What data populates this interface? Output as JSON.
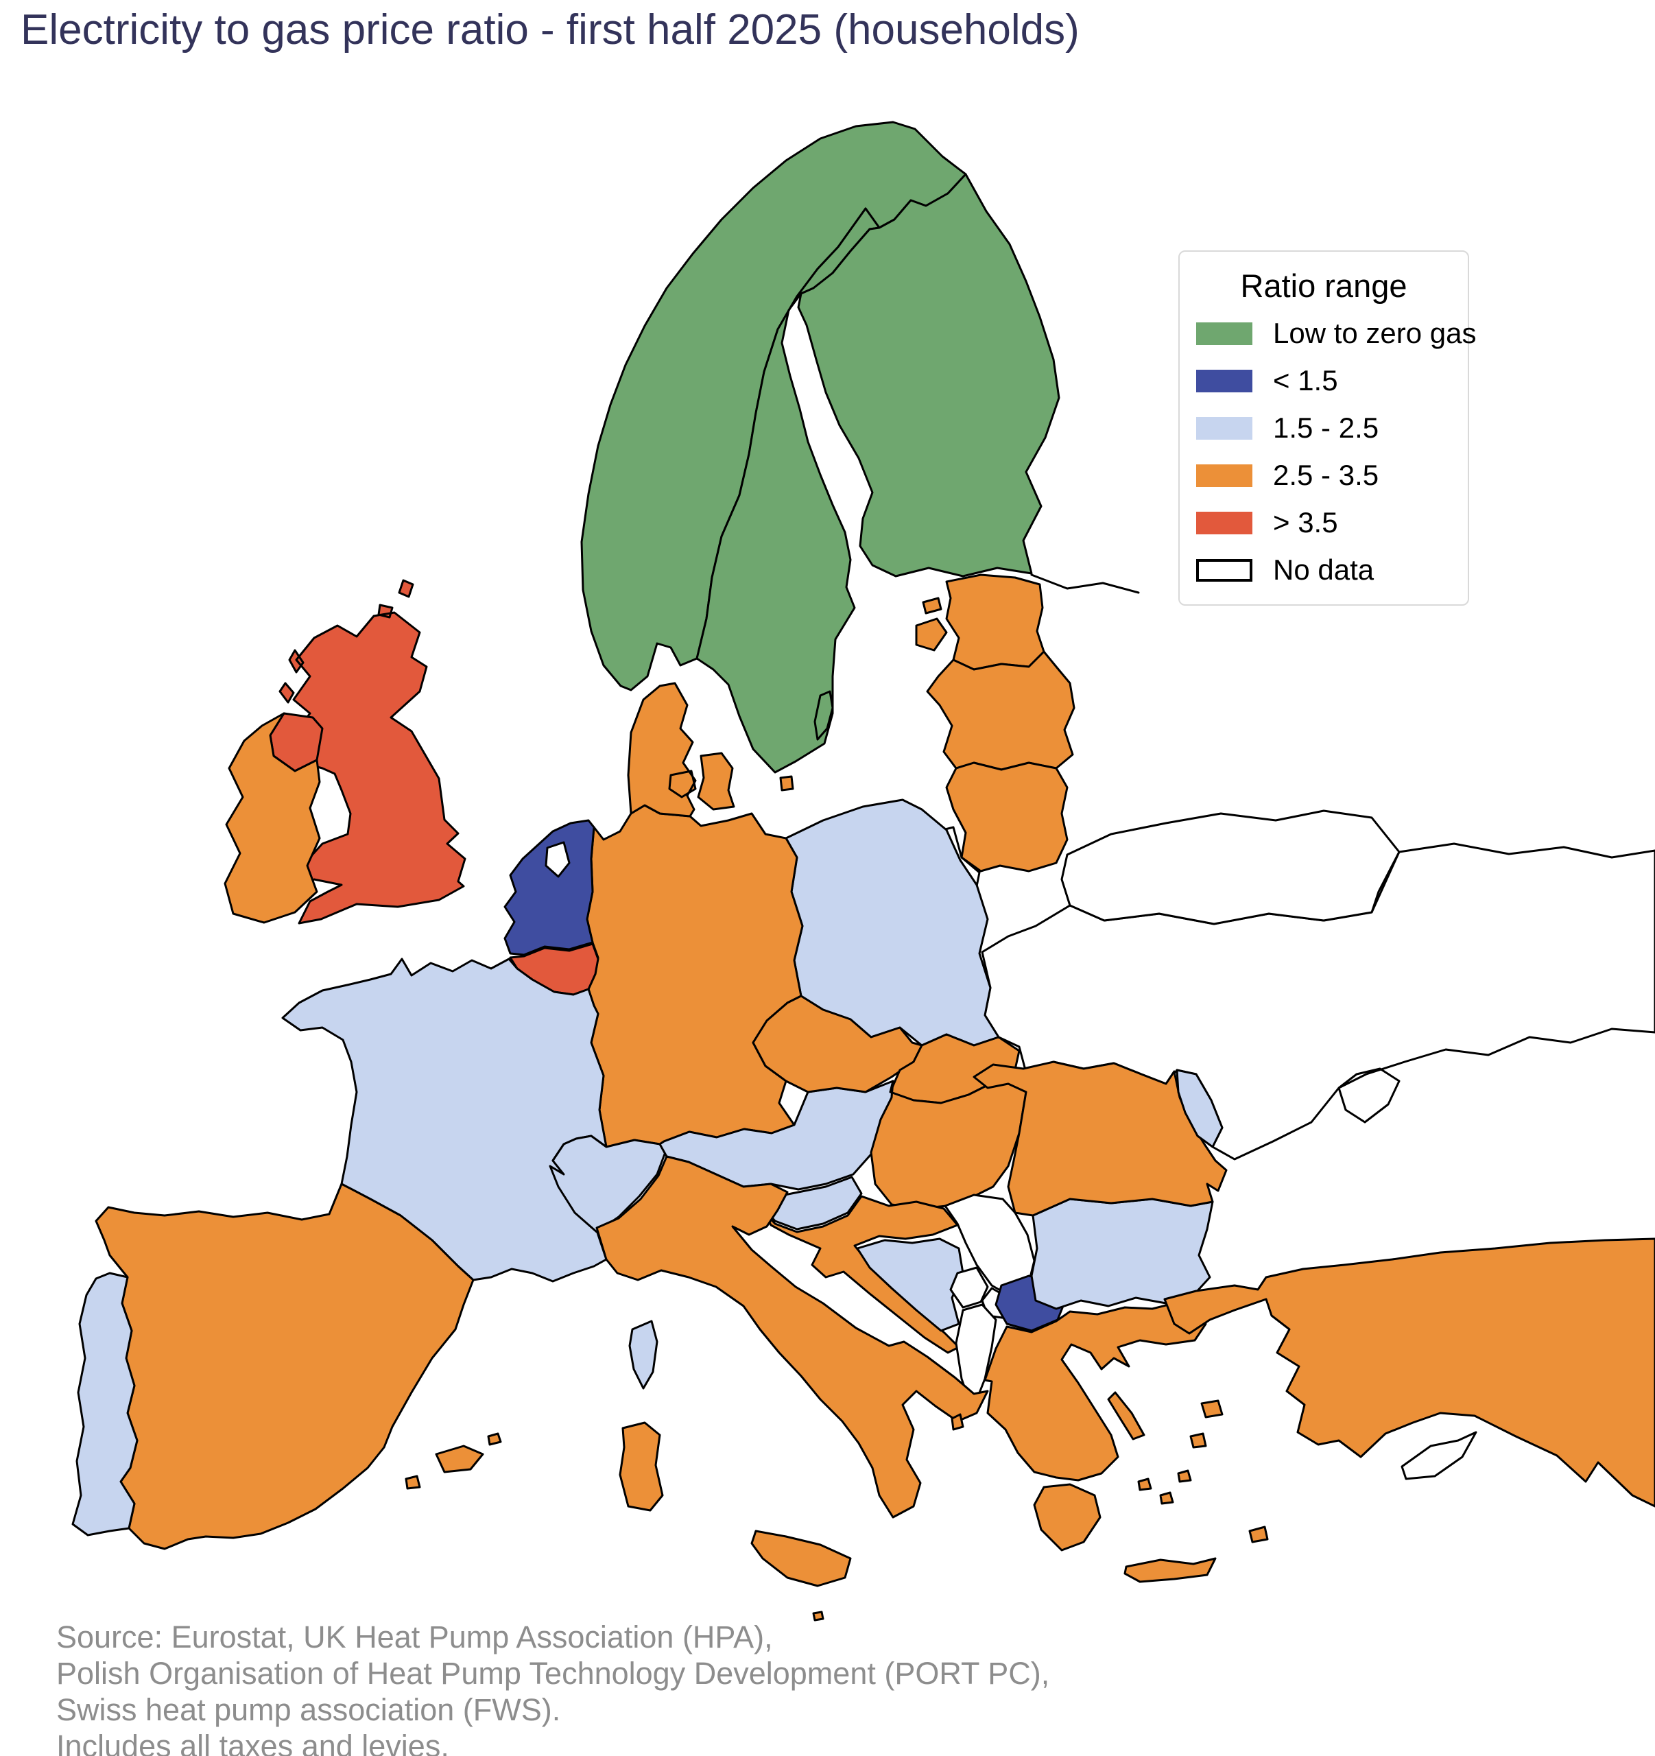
{
  "title": "Electricity to gas price ratio - first half 2025 (households)",
  "title_color": "#33335A",
  "legend": {
    "title": "Ratio range",
    "position": "top-right",
    "items": [
      {
        "key": "low_zero_gas",
        "label": "Low to zero gas",
        "color": "#6FA76F"
      },
      {
        "key": "lt_1_5",
        "label": "< 1.5",
        "color": "#3F4DA0"
      },
      {
        "key": "r_1_5_2_5",
        "label": "1.5 - 2.5",
        "color": "#C7D5EF"
      },
      {
        "key": "r_2_5_3_5",
        "label": "2.5 - 3.5",
        "color": "#EC9038"
      },
      {
        "key": "gt_3_5",
        "label": "> 3.5",
        "color": "#E2593C"
      },
      {
        "key": "no_data",
        "label": "No data",
        "color": "#FFFFFF"
      }
    ]
  },
  "source_lines": [
    "Source: Eurostat, UK Heat Pump Association (HPA),",
    "Polish Organisation of Heat Pump Technology Development (PORT PC),",
    "Swiss heat pump association (FWS).",
    "Includes all taxes and levies."
  ],
  "source_color": "#8D8D8D",
  "chart_data": {
    "type": "choropleth-map",
    "region": "Europe",
    "title": "Electricity to gas price ratio - first half 2025 (households)",
    "legend_title": "Ratio range",
    "categories": [
      {
        "key": "low_zero_gas",
        "label": "Low to zero gas"
      },
      {
        "key": "lt_1_5",
        "label": "< 1.5"
      },
      {
        "key": "r_1_5_2_5",
        "label": "1.5 - 2.5"
      },
      {
        "key": "r_2_5_3_5",
        "label": "2.5 - 3.5"
      },
      {
        "key": "gt_3_5",
        "label": "> 3.5"
      },
      {
        "key": "no_data",
        "label": "No data"
      }
    ],
    "countries": [
      {
        "name": "Norway",
        "category": "low_zero_gas"
      },
      {
        "name": "Sweden",
        "category": "low_zero_gas"
      },
      {
        "name": "Finland",
        "category": "low_zero_gas"
      },
      {
        "name": "United Kingdom",
        "category": "gt_3_5"
      },
      {
        "name": "Belgium",
        "category": "gt_3_5"
      },
      {
        "name": "Netherlands",
        "category": "lt_1_5"
      },
      {
        "name": "North Macedonia",
        "category": "lt_1_5"
      },
      {
        "name": "France",
        "category": "r_1_5_2_5"
      },
      {
        "name": "Portugal",
        "category": "r_1_5_2_5"
      },
      {
        "name": "Poland",
        "category": "r_1_5_2_5"
      },
      {
        "name": "Switzerland",
        "category": "r_1_5_2_5"
      },
      {
        "name": "Austria",
        "category": "r_1_5_2_5"
      },
      {
        "name": "Slovenia",
        "category": "r_1_5_2_5"
      },
      {
        "name": "Bosnia and Herzegovina",
        "category": "r_1_5_2_5"
      },
      {
        "name": "Bulgaria",
        "category": "r_1_5_2_5"
      },
      {
        "name": "Moldova",
        "category": "r_1_5_2_5"
      },
      {
        "name": "Ireland",
        "category": "r_2_5_3_5"
      },
      {
        "name": "Spain",
        "category": "r_2_5_3_5"
      },
      {
        "name": "Germany",
        "category": "r_2_5_3_5"
      },
      {
        "name": "Denmark",
        "category": "r_2_5_3_5"
      },
      {
        "name": "Luxembourg",
        "category": "r_2_5_3_5"
      },
      {
        "name": "Czechia",
        "category": "r_2_5_3_5"
      },
      {
        "name": "Slovakia",
        "category": "r_2_5_3_5"
      },
      {
        "name": "Hungary",
        "category": "r_2_5_3_5"
      },
      {
        "name": "Croatia",
        "category": "r_2_5_3_5"
      },
      {
        "name": "Italy",
        "category": "r_2_5_3_5"
      },
      {
        "name": "Romania",
        "category": "r_2_5_3_5"
      },
      {
        "name": "Greece",
        "category": "r_2_5_3_5"
      },
      {
        "name": "Turkey",
        "category": "r_2_5_3_5"
      },
      {
        "name": "Estonia",
        "category": "r_2_5_3_5"
      },
      {
        "name": "Latvia",
        "category": "r_2_5_3_5"
      },
      {
        "name": "Lithuania",
        "category": "r_2_5_3_5"
      },
      {
        "name": "Serbia",
        "category": "no_data"
      },
      {
        "name": "Kosovo",
        "category": "no_data"
      },
      {
        "name": "Montenegro",
        "category": "no_data"
      },
      {
        "name": "Albania",
        "category": "no_data"
      },
      {
        "name": "Ukraine",
        "category": "no_data"
      },
      {
        "name": "Belarus",
        "category": "no_data"
      },
      {
        "name": "Russia",
        "category": "no_data"
      },
      {
        "name": "Cyprus",
        "category": "no_data"
      }
    ]
  }
}
